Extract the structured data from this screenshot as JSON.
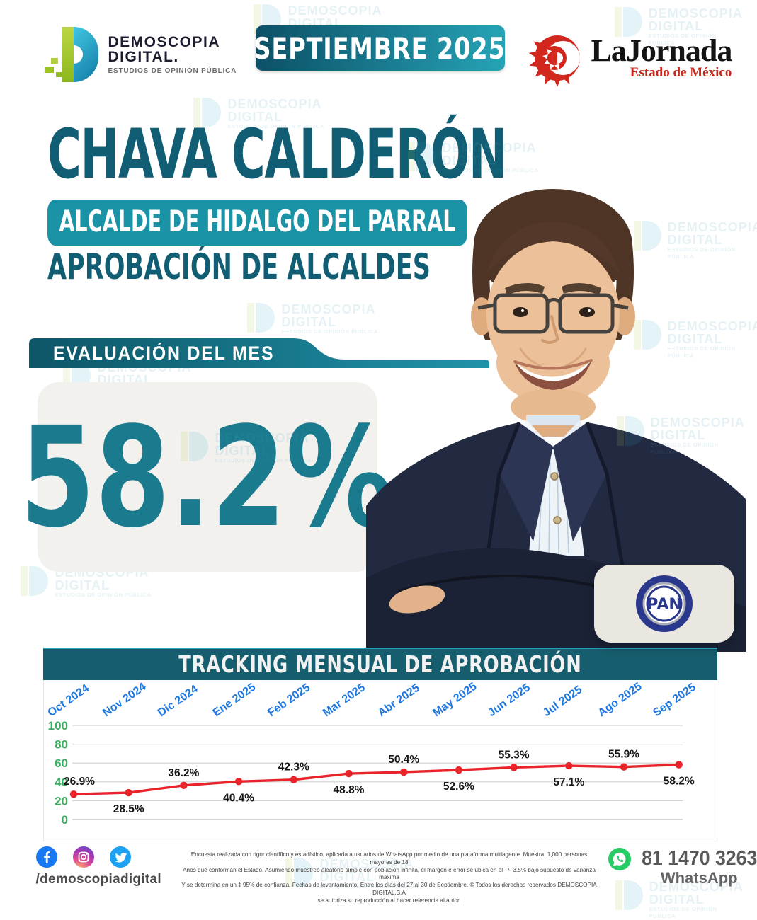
{
  "header": {
    "demoscopia_logo": {
      "name1": "DEMOSCOPIA",
      "name2": "DIGITAL.",
      "tagline": "ESTUDIOS DE OPINIÓN PÚBLICA"
    },
    "month_banner": "SEPTIEMBRE 2025",
    "lajornada": {
      "title": "LaJornada",
      "subtitle": "Estado de México"
    }
  },
  "title": {
    "name": "CHAVA CALDERÓN",
    "role": "ALCALDE DE HIDALGO DEL PARRAL",
    "section": "APROBACIÓN DE ALCALDES"
  },
  "evaluation": {
    "label": "EVALUACIÓN DEL MES",
    "value": "58.2%"
  },
  "party_badge": "PAN",
  "chart_data": {
    "type": "line",
    "title": "TRACKING MENSUAL DE APROBACIÓN",
    "categories": [
      "Oct 2024",
      "Nov 2024",
      "Dic 2024",
      "Ene 2025",
      "Feb 2025",
      "Mar 2025",
      "Abr 2025",
      "May 2025",
      "Jun 2025",
      "Jul 2025",
      "Ago 2025",
      "Sep 2025"
    ],
    "values": [
      26.9,
      28.5,
      36.2,
      40.4,
      42.3,
      48.8,
      50.4,
      52.6,
      55.3,
      57.1,
      55.9,
      58.2
    ],
    "unit": "%",
    "ylim": [
      0,
      100
    ],
    "yticks": [
      100,
      80,
      60,
      40,
      20,
      0
    ],
    "grid": true,
    "legend": "none",
    "line_color": "#e8242a",
    "label_color": "#151515",
    "month_color": "#1e78e0",
    "ytick_color": "#3cae60"
  },
  "footer": {
    "handle": "/demoscopiadigital",
    "disclaimer_lines": [
      "Encuesta realizada con rigor científico y estadístico, aplicada a usuarios de WhatsApp por medio de una plataforma multiagente. Muestra: 1,000 personas mayores de 18",
      "Años que conforman el Estado. Asumiendo muestreo aleatorio simple con población infinita, el margen e error se ubica en el +/- 3.5% bajo supuesto de varianza máxima",
      "Y se determina en un ‡ 95% de confianza. Fechas de levantamiento: Entre los días del 27 al 30 de Septiembre. © Todos los derechos reservados DEMOSCOPIA DIGITAL,S.A",
      "se autoriza su reproducción al hacer referencia al autor."
    ],
    "whatsapp_number": "81 1470 3263",
    "whatsapp_label": "WhatsApp"
  },
  "watermark": {
    "line1": "DEMOSCOPIA",
    "line2": "DIGITAL",
    "line3": "ESTUDIOS DE OPINIÓN PÚBLICA"
  }
}
